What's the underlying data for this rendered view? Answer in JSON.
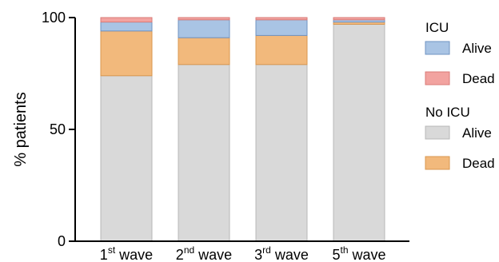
{
  "chart_data": {
    "type": "bar",
    "stacked": true,
    "ylabel": "% patients",
    "ylim": [
      0,
      100
    ],
    "yticks": [
      0,
      50,
      100
    ],
    "categories": [
      {
        "base": "1",
        "sup": "st",
        "tail": " wave"
      },
      {
        "base": "2",
        "sup": "nd",
        "tail": " wave"
      },
      {
        "base": "3",
        "sup": "rd",
        "tail": " wave"
      },
      {
        "base": "5",
        "sup": "th",
        "tail": " wave"
      }
    ],
    "series": [
      {
        "key": "noicu_alive",
        "group": "No ICU",
        "name": "Alive",
        "color": "#d9d9d9",
        "stroke": "#b8b8b8",
        "values": [
          74,
          79,
          79,
          97
        ]
      },
      {
        "key": "noicu_dead",
        "group": "No ICU",
        "name": "Dead",
        "color": "#f2b97c",
        "stroke": "#d9974f",
        "values": [
          20,
          12,
          13,
          1
        ]
      },
      {
        "key": "icu_alive",
        "group": "ICU",
        "name": "Alive",
        "color": "#a9c4e4",
        "stroke": "#6f93c2",
        "values": [
          4,
          8,
          7,
          1
        ]
      },
      {
        "key": "icu_dead",
        "group": "ICU",
        "name": "Dead",
        "color": "#f2a3a0",
        "stroke": "#d97b77",
        "values": [
          2,
          1,
          1,
          1
        ]
      }
    ],
    "legend": {
      "placement": "right",
      "groups": [
        {
          "title": "ICU",
          "items": [
            {
              "series": "icu_alive",
              "label": "Alive"
            },
            {
              "series": "icu_dead",
              "label": "Dead"
            }
          ]
        },
        {
          "title": "No ICU",
          "items": [
            {
              "series": "noicu_alive",
              "label": "Alive"
            },
            {
              "series": "noicu_dead",
              "label": "Dead"
            }
          ]
        }
      ]
    }
  }
}
